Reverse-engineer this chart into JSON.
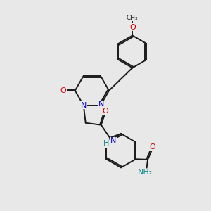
{
  "background_color": "#e8e8e8",
  "bond_color": "#1a1a1a",
  "n_color": "#0000cc",
  "o_color": "#cc0000",
  "nh_color": "#008888",
  "figsize": [
    3.0,
    3.0
  ],
  "dpi": 100,
  "lw": 1.4,
  "fs": 8.0,
  "xlim": [
    0,
    10
  ],
  "ylim": [
    0,
    10
  ]
}
